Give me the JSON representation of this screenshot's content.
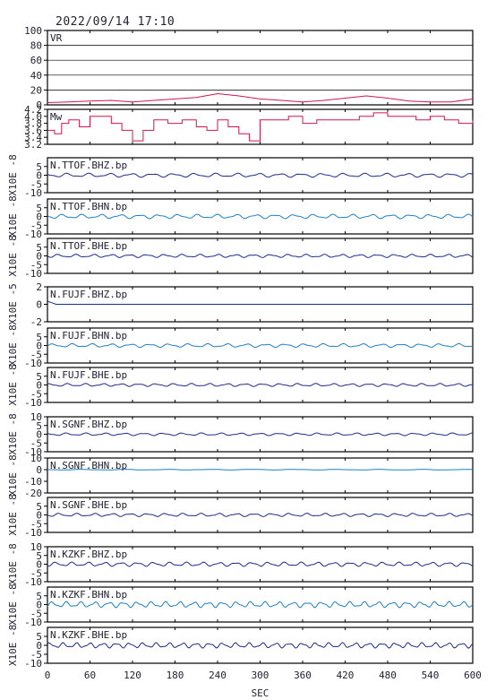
{
  "header": {
    "datetime": "2022/09/14  17:10"
  },
  "colors": {
    "axis": "#000000",
    "vr": "#d1174a",
    "mw": "#d1174a",
    "navy": "#1f2b8a",
    "blue": "#1f7fc3"
  },
  "chart_data": {
    "type": "line",
    "title": "2022/09/14  17:10",
    "xlabel": "SEC",
    "xlim": [
      0,
      600
    ],
    "xticks": [
      "0",
      "60",
      "120",
      "180",
      "240",
      "300",
      "360",
      "420",
      "480",
      "540",
      "600"
    ],
    "panels": [
      {
        "name": "VR",
        "ylim": [
          0,
          100
        ],
        "yticks": [
          "0",
          "20",
          "40",
          "60",
          "80",
          "100"
        ],
        "grid": true,
        "color": "vr",
        "x": [
          0,
          30,
          60,
          90,
          120,
          150,
          180,
          210,
          240,
          270,
          300,
          330,
          360,
          390,
          420,
          450,
          480,
          510,
          540,
          570,
          600
        ],
        "y": [
          3,
          4,
          5,
          6,
          4,
          6,
          8,
          10,
          15,
          12,
          8,
          6,
          4,
          6,
          9,
          12,
          9,
          5,
          4,
          4,
          8
        ]
      },
      {
        "name": "Mw",
        "ylim": [
          3.2,
          4.2
        ],
        "yticks": [
          "3.2",
          "3.4",
          "3.6",
          "3.8",
          "4.0",
          "4.2"
        ],
        "grid": false,
        "color": "mw",
        "x": [
          0,
          10,
          20,
          30,
          45,
          60,
          75,
          90,
          105,
          120,
          135,
          150,
          170,
          190,
          210,
          225,
          240,
          255,
          270,
          285,
          300,
          320,
          340,
          360,
          380,
          400,
          420,
          440,
          460,
          480,
          500,
          520,
          540,
          560,
          580,
          600
        ],
        "y": [
          3.6,
          3.5,
          3.8,
          3.9,
          3.7,
          4.0,
          4.0,
          3.8,
          3.6,
          3.3,
          3.6,
          3.9,
          3.8,
          3.9,
          3.7,
          3.6,
          3.9,
          3.7,
          3.5,
          3.3,
          3.9,
          3.9,
          4.0,
          3.8,
          3.9,
          3.9,
          3.9,
          4.0,
          4.1,
          4.0,
          4.0,
          3.9,
          4.0,
          3.9,
          3.8,
          3.9
        ]
      },
      {
        "name": "N.TTOF.BHZ.bp",
        "ylabel": "X10E -8",
        "ylim": [
          -10,
          10
        ],
        "yticks": [
          "-10",
          "-5",
          "0",
          "5"
        ],
        "color": "navy",
        "amplitude": 1.2,
        "waves": 20
      },
      {
        "name": "N.TTOF.BHN.bp",
        "ylabel": "X10E -8",
        "ylim": [
          -10,
          10
        ],
        "yticks": [
          "-10",
          "-5",
          "0",
          "5"
        ],
        "color": "blue",
        "amplitude": 1.3,
        "waves": 22
      },
      {
        "name": "N.TTOF.BHE.bp",
        "ylabel": "X10E -8",
        "ylim": [
          -10,
          10
        ],
        "yticks": [
          "-10",
          "-5",
          "0",
          "5"
        ],
        "color": "navy",
        "amplitude": 1.0,
        "waves": 24
      },
      {
        "name": "N.FUJF.BHZ.bp",
        "ylabel": "X10E -5",
        "ylim": [
          -2,
          2
        ],
        "yticks": [
          "-2",
          "0",
          "2"
        ],
        "color": "navy",
        "amplitude": 0.0,
        "waves": 0,
        "spike": 0.3
      },
      {
        "name": "N.FUJF.BHN.bp",
        "ylabel": "X10E -8",
        "ylim": [
          -10,
          10
        ],
        "yticks": [
          "-10",
          "-5",
          "0",
          "5"
        ],
        "color": "blue",
        "amplitude": 1.1,
        "waves": 22
      },
      {
        "name": "N.FUJF.BHE.bp",
        "ylabel": "X10E -8",
        "ylim": [
          -10,
          10
        ],
        "yticks": [
          "-10",
          "-5",
          "0",
          "5"
        ],
        "color": "navy",
        "amplitude": 0.9,
        "waves": 24
      },
      {
        "name": "N.SGNF.BHZ.bp",
        "ylabel": "X10E -8",
        "ylim": [
          -10,
          10
        ],
        "yticks": [
          "-10",
          "-5",
          "0",
          "5",
          "10"
        ],
        "color": "navy",
        "amplitude": 0.8,
        "waves": 22
      },
      {
        "name": "N.SGNF.BHN.bp",
        "ylabel": "X10E -8",
        "ylim": [
          -20,
          10
        ],
        "yticks": [
          "-20",
          "-10",
          "0",
          "10"
        ],
        "color": "blue",
        "amplitude": 0.3,
        "waves": 10
      },
      {
        "name": "N.SGNF.BHE.bp",
        "ylabel": "X10E -8",
        "ylim": [
          -10,
          10
        ],
        "yticks": [
          "-10",
          "-5",
          "0",
          "5"
        ],
        "color": "navy",
        "amplitude": 1.0,
        "waves": 24
      },
      {
        "name": "N.KZKF.BHZ.bp",
        "ylabel": "X10E -8",
        "ylim": [
          -10,
          10
        ],
        "yticks": [
          "-10",
          "-5",
          "0",
          "5",
          "10"
        ],
        "color": "navy",
        "amplitude": 1.3,
        "waves": 26
      },
      {
        "name": "N.KZKF.BHN.bp",
        "ylabel": "X10E -8",
        "ylim": [
          -10,
          10
        ],
        "yticks": [
          "-10",
          "-5",
          "0",
          "5"
        ],
        "color": "blue",
        "amplitude": 1.8,
        "waves": 30
      },
      {
        "name": "N.KZKF.BHE.bp",
        "ylabel": "X10E -8",
        "ylim": [
          -10,
          10
        ],
        "yticks": [
          "-10",
          "-5",
          "0",
          "5"
        ],
        "color": "navy",
        "amplitude": 1.6,
        "waves": 32
      }
    ]
  }
}
